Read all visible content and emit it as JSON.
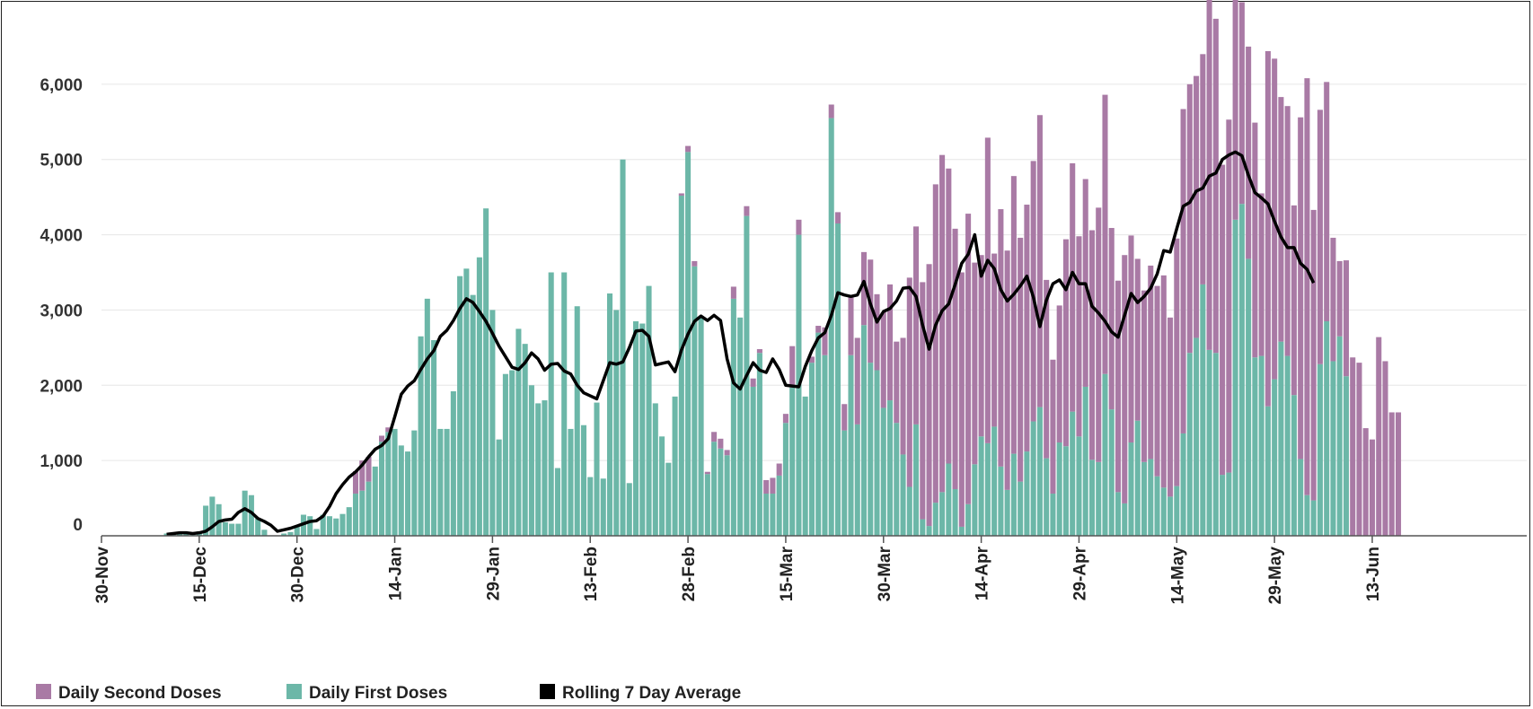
{
  "chart_data": {
    "type": "bar",
    "stacked": true,
    "title": "",
    "xlabel": "",
    "ylabel": "",
    "ylim": [
      0,
      7000
    ],
    "y_ticks": [
      0,
      1000,
      2000,
      3000,
      4000,
      5000,
      6000
    ],
    "y_tick_labels": [
      "0",
      "1,000",
      "2,000",
      "3,000",
      "4,000",
      "5,000",
      "6,000"
    ],
    "x_ticks": [
      {
        "label": "30-Nov",
        "date": "2020-11-30"
      },
      {
        "label": "15-Dec",
        "date": "2020-12-15"
      },
      {
        "label": "30-Dec",
        "date": "2020-12-30"
      },
      {
        "label": "14-Jan",
        "date": "2021-01-14"
      },
      {
        "label": "29-Jan",
        "date": "2021-01-29"
      },
      {
        "label": "13-Feb",
        "date": "2021-02-13"
      },
      {
        "label": "28-Feb",
        "date": "2021-02-28"
      },
      {
        "label": "15-Mar",
        "date": "2021-03-15"
      },
      {
        "label": "30-Mar",
        "date": "2021-03-30"
      },
      {
        "label": "14-Apr",
        "date": "2021-04-14"
      },
      {
        "label": "29-Apr",
        "date": "2021-04-29"
      },
      {
        "label": "14-May",
        "date": "2021-05-14"
      },
      {
        "label": "29-May",
        "date": "2021-05-29"
      },
      {
        "label": "13-Jun",
        "date": "2021-06-13"
      }
    ],
    "x_start": "2020-11-30",
    "x_end": "2021-06-13",
    "grid": true,
    "legend_position": "bottom-left",
    "colors": {
      "second": "#a97aa5",
      "first": "#6cb7a8",
      "average": "#000000"
    },
    "series": [
      {
        "name": "Daily Second Doses",
        "type": "bar",
        "key": "second"
      },
      {
        "name": "Daily First Doses",
        "type": "bar",
        "key": "first"
      },
      {
        "name": "Rolling 7 Day Average",
        "type": "line",
        "key": "average"
      }
    ],
    "series_start": "2020-12-10",
    "first": [
      30,
      40,
      50,
      40,
      40,
      60,
      400,
      520,
      420,
      180,
      160,
      160,
      600,
      540,
      230,
      80,
      0,
      0,
      30,
      50,
      130,
      280,
      260,
      90,
      280,
      260,
      230,
      290,
      380,
      560,
      600,
      720,
      920,
      1250,
      1380,
      1420,
      1200,
      1120,
      1400,
      2650,
      3150,
      2600,
      1420,
      1420,
      1920,
      3450,
      3550,
      3200,
      3700,
      4350,
      3000,
      1280,
      2150,
      2200,
      2750,
      2550,
      2000,
      1760,
      1800,
      3500,
      900,
      3500,
      1420,
      3050,
      1470,
      780,
      1770,
      760,
      3220,
      3000,
      5000,
      700,
      2850,
      2820,
      3320,
      1760,
      1320,
      970,
      1850,
      4520,
      5100,
      3580,
      2900,
      820,
      1250,
      1160,
      1070,
      3150,
      2900,
      4250,
      1980,
      2430,
      560,
      560,
      800,
      1500,
      1970,
      4000,
      1850,
      2300,
      2700,
      2400,
      5550,
      4150,
      1400,
      2400,
      1480,
      2800,
      2300,
      2200,
      1700,
      1800,
      1500,
      1080,
      650,
      1480,
      220,
      130,
      440,
      580,
      960,
      620,
      120,
      420,
      950,
      1320,
      1230,
      1450,
      920,
      610,
      1090,
      720,
      1120,
      1520,
      1710,
      1030,
      560,
      1240,
      1190,
      1650,
      1320,
      1980,
      1010,
      980,
      2150,
      1680,
      580,
      430,
      1240,
      1530,
      980,
      1020,
      790,
      640,
      520,
      660,
      1360,
      2430,
      2630,
      3340,
      2470,
      2430,
      810,
      840,
      4200,
      4410,
      3680,
      2370,
      2390,
      1720,
      2080,
      2580,
      2390,
      1870,
      1020,
      540,
      470,
      2280,
      2850,
      2320,
      2650,
      2120
    ],
    "second": [
      0,
      0,
      0,
      0,
      0,
      0,
      0,
      0,
      0,
      0,
      0,
      0,
      0,
      0,
      0,
      0,
      0,
      0,
      0,
      0,
      0,
      0,
      0,
      0,
      0,
      0,
      0,
      0,
      0,
      300,
      400,
      330,
      0,
      80,
      60,
      0,
      0,
      0,
      0,
      0,
      0,
      0,
      0,
      0,
      0,
      0,
      0,
      0,
      0,
      0,
      0,
      0,
      0,
      0,
      0,
      0,
      0,
      0,
      0,
      0,
      0,
      0,
      0,
      0,
      0,
      0,
      0,
      0,
      0,
      0,
      0,
      0,
      0,
      0,
      0,
      0,
      0,
      0,
      0,
      30,
      80,
      70,
      0,
      30,
      130,
      130,
      70,
      160,
      0,
      130,
      110,
      50,
      180,
      210,
      160,
      120,
      550,
      200,
      0,
      80,
      90,
      370,
      180,
      150,
      350,
      800,
      1150,
      970,
      1370,
      1010,
      1270,
      1540,
      1080,
      1550,
      2780,
      2630,
      3150,
      3480,
      4230,
      4480,
      3920,
      3460,
      3380,
      3860,
      2680,
      2410,
      4060,
      2300,
      3420,
      3180,
      3690,
      3240,
      3280,
      3460,
      3880,
      2370,
      1780,
      1820,
      2750,
      3300,
      2660,
      2760,
      3050,
      3380,
      3710,
      2410,
      2810,
      3300,
      2750,
      2150,
      2280,
      2570,
      2530,
      2820,
      2380,
      3290,
      4310,
      3570,
      3480,
      3060,
      5540,
      4440,
      4120,
      4690,
      4020,
      2680,
      2820,
      3120,
      2160,
      4720,
      4260,
      3250,
      3320,
      2520,
      4540,
      5540,
      3860,
      3380,
      3180,
      1640,
      1000,
      1540,
      2370,
      2300,
      1430,
      1280,
      2640,
      2320,
      1640,
      1640
    ],
    "average": [
      20,
      30,
      40,
      40,
      30,
      40,
      60,
      120,
      190,
      210,
      220,
      310,
      360,
      310,
      230,
      190,
      140,
      60,
      80,
      100,
      130,
      160,
      190,
      200,
      260,
      390,
      560,
      680,
      780,
      850,
      940,
      1050,
      1150,
      1200,
      1290,
      1580,
      1880,
      1990,
      2060,
      2210,
      2350,
      2460,
      2650,
      2730,
      2860,
      3020,
      3150,
      3100,
      2980,
      2850,
      2690,
      2520,
      2380,
      2240,
      2210,
      2300,
      2430,
      2350,
      2200,
      2280,
      2290,
      2190,
      2150,
      2000,
      1900,
      1860,
      1820,
      2060,
      2300,
      2280,
      2310,
      2500,
      2720,
      2730,
      2650,
      2270,
      2290,
      2310,
      2180,
      2470,
      2680,
      2850,
      2920,
      2860,
      2930,
      2860,
      2350,
      2030,
      1950,
      2130,
      2300,
      2200,
      2170,
      2350,
      2210,
      2000,
      1990,
      1980,
      2250,
      2460,
      2630,
      2700,
      2930,
      3230,
      3200,
      3180,
      3200,
      3380,
      3080,
      2840,
      2980,
      3020,
      3120,
      3290,
      3300,
      3180,
      2800,
      2480,
      2800,
      2990,
      3080,
      3340,
      3620,
      3740,
      4000,
      3450,
      3660,
      3550,
      3270,
      3120,
      3210,
      3320,
      3450,
      3170,
      2780,
      3130,
      3350,
      3400,
      3270,
      3500,
      3350,
      3350,
      3050,
      2960,
      2850,
      2710,
      2640,
      2930,
      3220,
      3100,
      3180,
      3290,
      3480,
      3790,
      3770,
      4080,
      4380,
      4430,
      4580,
      4620,
      4780,
      4820,
      5000,
      5060,
      5100,
      5050,
      4790,
      4560,
      4490,
      4410,
      4180,
      3970,
      3830,
      3830,
      3620,
      3540,
      3360
    ]
  },
  "legend": [
    {
      "label": "Daily Second Doses",
      "swatch": "#a97aa5"
    },
    {
      "label": "Daily First Doses",
      "swatch": "#6cb7a8"
    },
    {
      "label": "Rolling 7 Day Average",
      "swatch": "#000000"
    }
  ]
}
